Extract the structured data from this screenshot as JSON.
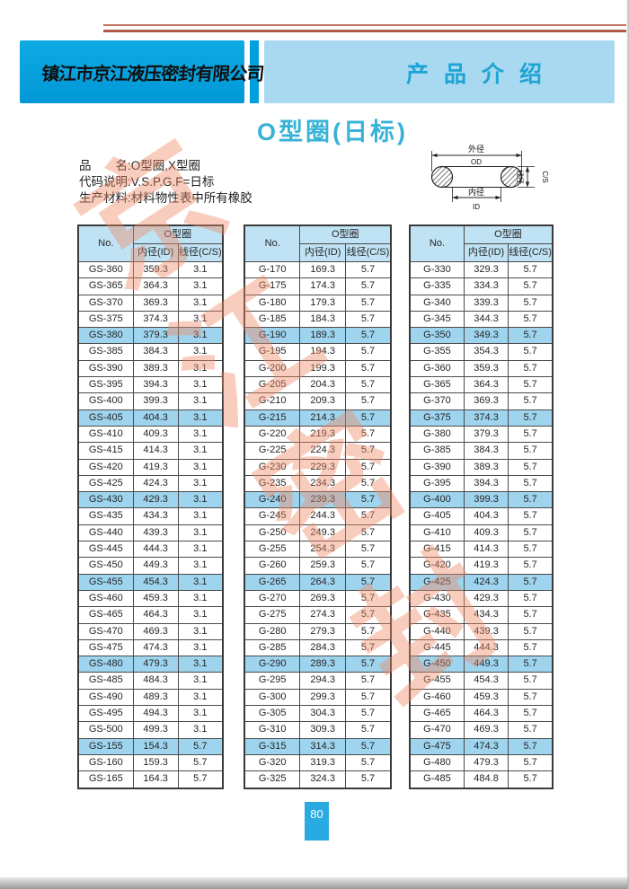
{
  "header": {
    "company": "镇江市京江液压密封有限公司",
    "section_title": "产品介绍"
  },
  "page_title": "O型圈(日标)",
  "product_info": {
    "line1": "品　　名:O型圈,X型圈",
    "line2": "代码说明:V.S.P.G.F=日标",
    "line3": "生产材料:材料物性表中所有橡胶"
  },
  "diagram": {
    "outer_diameter_cn": "外径",
    "outer_diameter": "OD",
    "inner_diameter_cn": "内径",
    "inner_diameter": "ID",
    "cross_section_cn": "线径",
    "cross_section": "C/S"
  },
  "table_header": {
    "no": "No.",
    "group": "O型圈",
    "id": "内径(ID)",
    "cs": "线径(C/S)"
  },
  "tables": [
    {
      "highlight_rows": [
        4,
        9,
        14,
        19,
        24,
        29
      ],
      "rows": [
        [
          "GS-360",
          "359.3",
          "3.1"
        ],
        [
          "GS-365",
          "364.3",
          "3.1"
        ],
        [
          "GS-370",
          "369.3",
          "3.1"
        ],
        [
          "GS-375",
          "374.3",
          "3.1"
        ],
        [
          "GS-380",
          "379.3",
          "3.1"
        ],
        [
          "GS-385",
          "384.3",
          "3.1"
        ],
        [
          "GS-390",
          "389.3",
          "3.1"
        ],
        [
          "GS-395",
          "394.3",
          "3.1"
        ],
        [
          "GS-400",
          "399.3",
          "3.1"
        ],
        [
          "GS-405",
          "404.3",
          "3.1"
        ],
        [
          "GS-410",
          "409.3",
          "3.1"
        ],
        [
          "GS-415",
          "414.3",
          "3.1"
        ],
        [
          "GS-420",
          "419.3",
          "3.1"
        ],
        [
          "GS-425",
          "424.3",
          "3.1"
        ],
        [
          "GS-430",
          "429.3",
          "3.1"
        ],
        [
          "GS-435",
          "434.3",
          "3.1"
        ],
        [
          "GS-440",
          "439.3",
          "3.1"
        ],
        [
          "GS-445",
          "444.3",
          "3.1"
        ],
        [
          "GS-450",
          "449.3",
          "3.1"
        ],
        [
          "GS-455",
          "454.3",
          "3.1"
        ],
        [
          "GS-460",
          "459.3",
          "3.1"
        ],
        [
          "GS-465",
          "464.3",
          "3.1"
        ],
        [
          "GS-470",
          "469.3",
          "3.1"
        ],
        [
          "GS-475",
          "474.3",
          "3.1"
        ],
        [
          "GS-480",
          "479.3",
          "3.1"
        ],
        [
          "GS-485",
          "484.3",
          "3.1"
        ],
        [
          "GS-490",
          "489.3",
          "3.1"
        ],
        [
          "GS-495",
          "494.3",
          "3.1"
        ],
        [
          "GS-500",
          "499.3",
          "3.1"
        ],
        [
          "GS-155",
          "154.3",
          "5.7"
        ],
        [
          "GS-160",
          "159.3",
          "5.7"
        ],
        [
          "GS-165",
          "164.3",
          "5.7"
        ]
      ]
    },
    {
      "highlight_rows": [
        4,
        9,
        14,
        19,
        24,
        29
      ],
      "rows": [
        [
          "G-170",
          "169.3",
          "5.7"
        ],
        [
          "G-175",
          "174.3",
          "5.7"
        ],
        [
          "G-180",
          "179.3",
          "5.7"
        ],
        [
          "G-185",
          "184.3",
          "5.7"
        ],
        [
          "G-190",
          "189.3",
          "5.7"
        ],
        [
          "G-195",
          "194.3",
          "5.7"
        ],
        [
          "G-200",
          "199.3",
          "5.7"
        ],
        [
          "G-205",
          "204.3",
          "5.7"
        ],
        [
          "G-210",
          "209.3",
          "5.7"
        ],
        [
          "G-215",
          "214.3",
          "5.7"
        ],
        [
          "G-220",
          "219.3",
          "5.7"
        ],
        [
          "G-225",
          "224.3",
          "5.7"
        ],
        [
          "G-230",
          "229.3",
          "5.7"
        ],
        [
          "G-235",
          "234.3",
          "5.7"
        ],
        [
          "G-240",
          "239.3",
          "5.7"
        ],
        [
          "G-245",
          "244.3",
          "5.7"
        ],
        [
          "G-250",
          "249.3",
          "5.7"
        ],
        [
          "G-255",
          "254.3",
          "5.7"
        ],
        [
          "G-260",
          "259.3",
          "5.7"
        ],
        [
          "G-265",
          "264.3",
          "5.7"
        ],
        [
          "G-270",
          "269.3",
          "5.7"
        ],
        [
          "G-275",
          "274.3",
          "5.7"
        ],
        [
          "G-280",
          "279.3",
          "5.7"
        ],
        [
          "G-285",
          "284.3",
          "5.7"
        ],
        [
          "G-290",
          "289.3",
          "5.7"
        ],
        [
          "G-295",
          "294.3",
          "5.7"
        ],
        [
          "G-300",
          "299.3",
          "5.7"
        ],
        [
          "G-305",
          "304.3",
          "5.7"
        ],
        [
          "G-310",
          "309.3",
          "5.7"
        ],
        [
          "G-315",
          "314.3",
          "5.7"
        ],
        [
          "G-320",
          "319.3",
          "5.7"
        ],
        [
          "G-325",
          "324.3",
          "5.7"
        ]
      ]
    },
    {
      "highlight_rows": [
        4,
        9,
        14,
        19,
        24,
        29
      ],
      "rows": [
        [
          "G-330",
          "329.3",
          "5.7"
        ],
        [
          "G-335",
          "334.3",
          "5.7"
        ],
        [
          "G-340",
          "339.3",
          "5.7"
        ],
        [
          "G-345",
          "344.3",
          "5.7"
        ],
        [
          "G-350",
          "349.3",
          "5.7"
        ],
        [
          "G-355",
          "354.3",
          "5.7"
        ],
        [
          "G-360",
          "359.3",
          "5.7"
        ],
        [
          "G-365",
          "364.3",
          "5.7"
        ],
        [
          "G-370",
          "369.3",
          "5.7"
        ],
        [
          "G-375",
          "374.3",
          "5.7"
        ],
        [
          "G-380",
          "379.3",
          "5.7"
        ],
        [
          "G-385",
          "384.3",
          "5.7"
        ],
        [
          "G-390",
          "389.3",
          "5.7"
        ],
        [
          "G-395",
          "394.3",
          "5.7"
        ],
        [
          "G-400",
          "399.3",
          "5.7"
        ],
        [
          "G-405",
          "404.3",
          "5.7"
        ],
        [
          "G-410",
          "409.3",
          "5.7"
        ],
        [
          "G-415",
          "414.3",
          "5.7"
        ],
        [
          "G-420",
          "419.3",
          "5.7"
        ],
        [
          "G-425",
          "424.3",
          "5.7"
        ],
        [
          "G-430",
          "429.3",
          "5.7"
        ],
        [
          "G-435",
          "434.3",
          "5.7"
        ],
        [
          "G-440",
          "439.3",
          "5.7"
        ],
        [
          "G-445",
          "444.3",
          "5.7"
        ],
        [
          "G-450",
          "449.3",
          "5.7"
        ],
        [
          "G-455",
          "454.3",
          "5.7"
        ],
        [
          "G-460",
          "459.3",
          "5.7"
        ],
        [
          "G-465",
          "464.3",
          "5.7"
        ],
        [
          "G-470",
          "469.3",
          "5.7"
        ],
        [
          "G-475",
          "474.3",
          "5.7"
        ],
        [
          "G-480",
          "479.3",
          "5.7"
        ],
        [
          "G-485",
          "484.8",
          "5.7"
        ]
      ]
    }
  ],
  "watermark": {
    "char1": "京",
    "char2": "江",
    "char3": "密",
    "char4": "封"
  },
  "footer": {
    "page_number": "80"
  },
  "colors": {
    "banner_blue": "#00a0dd",
    "banner_light_blue": "#a9d9f0",
    "section_title_blue": "#1ba4d4",
    "page_title_blue": "#38b2d7",
    "table_header_bg": "#bfe3f4",
    "row_highlight_blue": "#9fd4ee",
    "watermark_salmon": "#ef8a67",
    "badge_blue": "#29abe2",
    "topline_red": "#b25a48"
  }
}
